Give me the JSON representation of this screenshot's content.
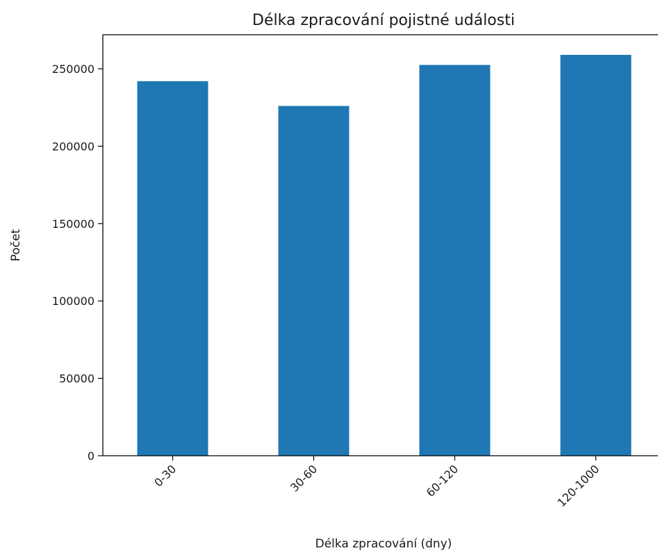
{
  "chart_data": {
    "type": "bar",
    "title": "Délka zpracování pojistné události",
    "xlabel": "Délka zpracování (dny)",
    "ylabel": "Počet",
    "categories": [
      "0-30",
      "30-60",
      "60-120",
      "120-1000"
    ],
    "values": [
      242000,
      226000,
      252500,
      259000
    ],
    "ylim": [
      0,
      272000
    ],
    "yticks": [
      0,
      50000,
      100000,
      150000,
      200000,
      250000
    ],
    "grid": false,
    "bar_color": "#1f77b4"
  }
}
